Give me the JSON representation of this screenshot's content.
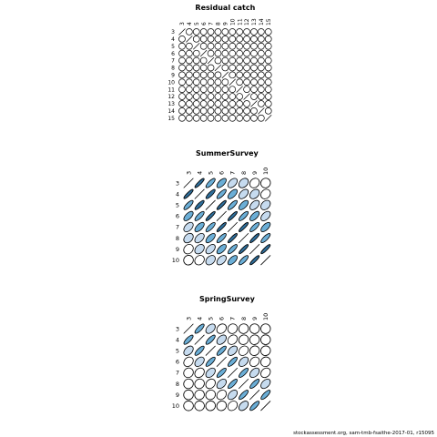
{
  "footer": "stockassessment.org, sam-tmb-fsaithe-2017-01, r15095",
  "chart_data": [
    {
      "type": "heatmap",
      "title": "Residual catch",
      "ages": [
        "3",
        "4",
        "5",
        "6",
        "7",
        "8",
        "9",
        "10",
        "11",
        "12",
        "13",
        "14",
        "15"
      ],
      "corr": [
        [
          0,
          0,
          0,
          0,
          0,
          0,
          0,
          0,
          0,
          0,
          0,
          0,
          0
        ],
        [
          0,
          0,
          0,
          0,
          0,
          0,
          0,
          0,
          0,
          0,
          0,
          0,
          0
        ],
        [
          0,
          0,
          0,
          0,
          0,
          0,
          0,
          0,
          0,
          0,
          0,
          0,
          0
        ],
        [
          0,
          0,
          0,
          0,
          0,
          0,
          0,
          0,
          0,
          0,
          0,
          0,
          0
        ],
        [
          0,
          0,
          0,
          0,
          0,
          0,
          0,
          0,
          0,
          0,
          0,
          0,
          0
        ],
        [
          0,
          0,
          0,
          0,
          0,
          0,
          0,
          0.15,
          0,
          0,
          0,
          0,
          0
        ],
        [
          0,
          0,
          0,
          0,
          0,
          0,
          0,
          0,
          0,
          0,
          0,
          0,
          0
        ],
        [
          0,
          0,
          0,
          0,
          0,
          0,
          0,
          0,
          0,
          0,
          0,
          0,
          0
        ],
        [
          0,
          0,
          0,
          0,
          0,
          0,
          0,
          0,
          0,
          0,
          0,
          0,
          0
        ],
        [
          0,
          0,
          0,
          0,
          0,
          0,
          0,
          0,
          0,
          0,
          0,
          0,
          0
        ],
        [
          0,
          0,
          0,
          0,
          0,
          0,
          0,
          0,
          0,
          0,
          0,
          0,
          0.1
        ],
        [
          0,
          0,
          0,
          0,
          0,
          0,
          0,
          0,
          0,
          0,
          0,
          0,
          0
        ]
      ]
    },
    {
      "type": "heatmap",
      "title": "SummerSurvey",
      "ages": [
        "3",
        "4",
        "5",
        "6",
        "7",
        "8",
        "9",
        "10"
      ],
      "corr": [
        [
          0.9
        ],
        [
          0.8,
          0.85
        ],
        [
          0.65,
          0.8,
          0.9
        ],
        [
          0.5,
          0.65,
          0.8,
          0.9
        ],
        [
          0.35,
          0.5,
          0.65,
          0.8,
          0.9
        ],
        [
          0.2,
          0.35,
          0.5,
          0.65,
          0.8,
          0.9
        ],
        [
          0.05,
          0.2,
          0.35,
          0.5,
          0.65,
          0.8,
          0.9
        ]
      ]
    },
    {
      "type": "heatmap",
      "title": "SpringSurvey",
      "ages": [
        "3",
        "4",
        "5",
        "6",
        "7",
        "8",
        "9",
        "10"
      ],
      "corr": [
        [
          0.8
        ],
        [
          0.45,
          0.8
        ],
        [
          0.25,
          0.45,
          0.8
        ],
        [
          0.1,
          0.25,
          0.45,
          0.8
        ],
        [
          0.05,
          0.1,
          0.25,
          0.45,
          0.8
        ],
        [
          0.02,
          0.05,
          0.1,
          0.25,
          0.45,
          0.8
        ],
        [
          0.0,
          0.02,
          0.05,
          0.1,
          0.25,
          0.45,
          0.8
        ]
      ]
    }
  ],
  "colors": {
    "dark": "#2f6e9a",
    "mid": "#6baed6",
    "light": "#c6dbef",
    "outline": "#000000",
    "background": "#ffffff"
  }
}
